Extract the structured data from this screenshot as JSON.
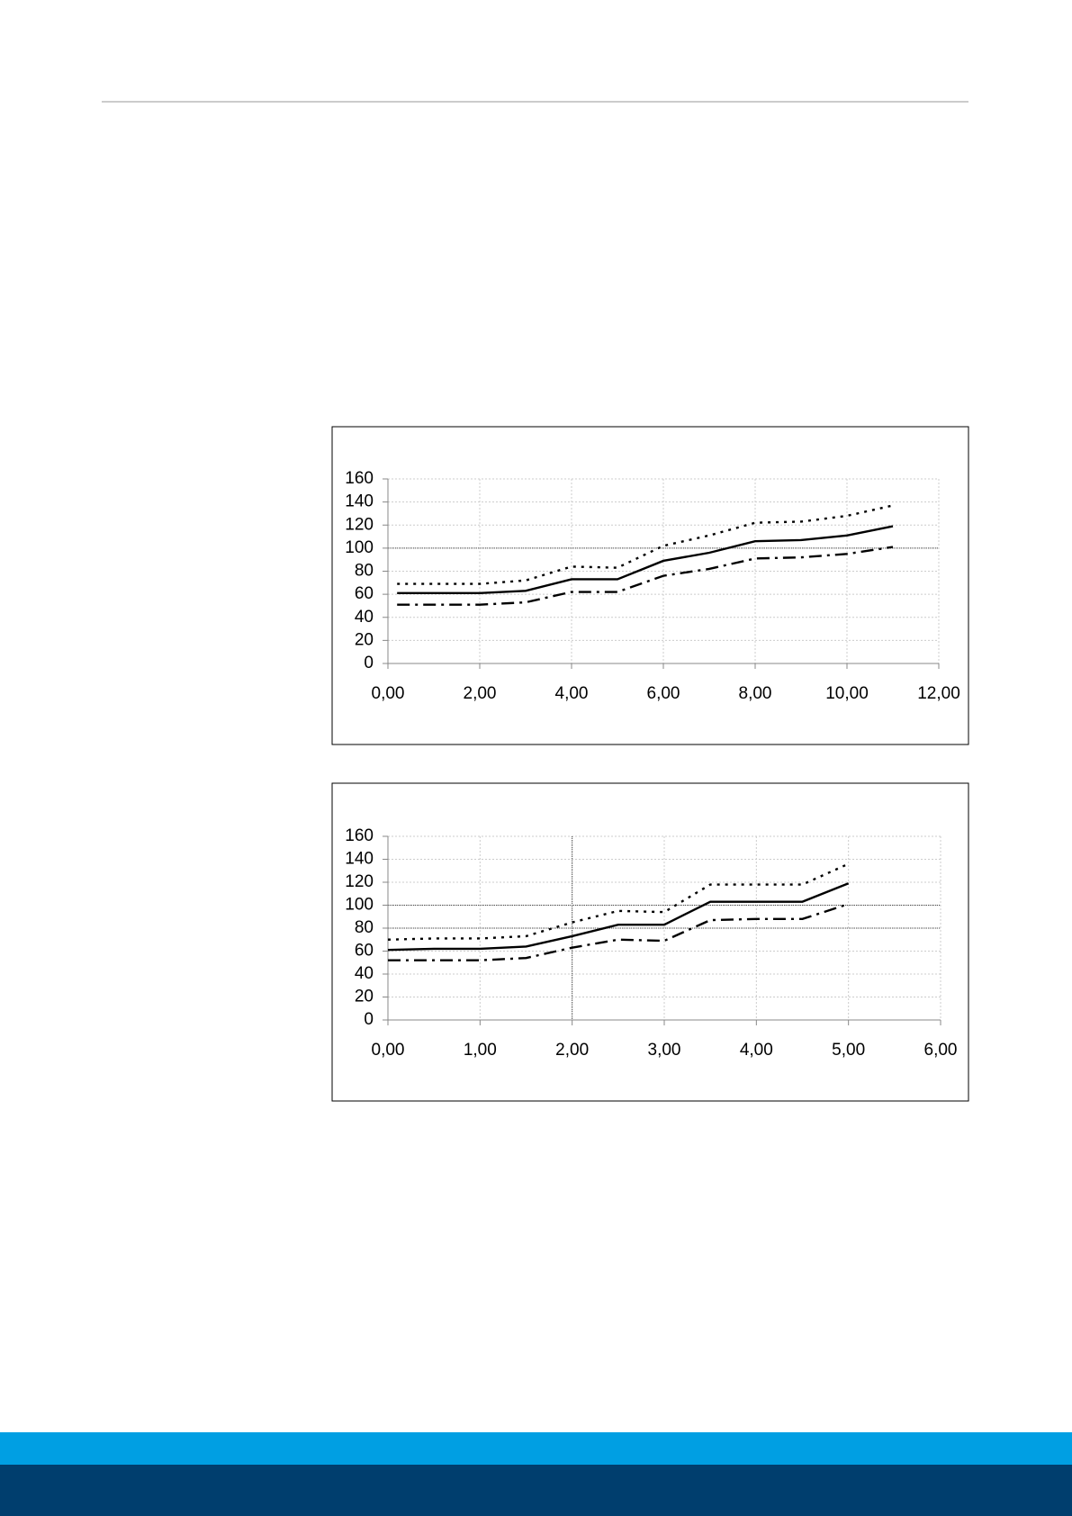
{
  "chart_data": [
    {
      "type": "line",
      "x": [
        0.2,
        1,
        2,
        3,
        4,
        5,
        6,
        7,
        8,
        9,
        10,
        11
      ],
      "series": [
        {
          "color": "#000000",
          "dash": "dotted",
          "values": [
            69,
            69,
            69,
            72,
            84,
            83,
            102,
            111,
            122,
            123,
            128,
            137
          ]
        },
        {
          "color": "#000000",
          "dash": "solid",
          "values": [
            61,
            61,
            61,
            63,
            73,
            73,
            89,
            96,
            106,
            107,
            111,
            119
          ]
        },
        {
          "color": "#000000",
          "dash": "dashdot",
          "values": [
            51,
            51,
            51,
            53,
            62,
            62,
            76,
            82,
            91,
            92,
            95,
            101
          ]
        }
      ],
      "xlim": [
        0,
        12
      ],
      "xticks": [
        {
          "value": 0,
          "label": "0,00"
        },
        {
          "value": 2,
          "label": "2,00"
        },
        {
          "value": 4,
          "label": "4,00"
        },
        {
          "value": 6,
          "label": "6,00"
        },
        {
          "value": 8,
          "label": "8,00"
        },
        {
          "value": 10,
          "label": "10,00"
        },
        {
          "value": 12,
          "label": "12,00"
        }
      ],
      "ylim": [
        0,
        160
      ],
      "yticks": [
        0,
        20,
        40,
        60,
        80,
        100,
        120,
        140,
        160
      ],
      "grid": true,
      "hlines": [
        100
      ],
      "vlines": []
    },
    {
      "type": "line",
      "x": [
        0,
        0.5,
        1,
        1.5,
        2,
        2.5,
        3,
        3.5,
        4,
        4.5,
        5
      ],
      "series": [
        {
          "color": "#000000",
          "dash": "dotted",
          "values": [
            70,
            71,
            71,
            73,
            85,
            95,
            94,
            118,
            118,
            118,
            136
          ]
        },
        {
          "color": "#000000",
          "dash": "solid",
          "values": [
            61,
            62,
            62,
            64,
            73,
            83,
            83,
            103,
            103,
            103,
            119
          ]
        },
        {
          "color": "#000000",
          "dash": "dashdot",
          "values": [
            52,
            52,
            52,
            54,
            63,
            70,
            69,
            87,
            88,
            88,
            101
          ]
        }
      ],
      "xlim": [
        0,
        6
      ],
      "xticks": [
        {
          "value": 0,
          "label": "0,00"
        },
        {
          "value": 1,
          "label": "1,00"
        },
        {
          "value": 2,
          "label": "2,00"
        },
        {
          "value": 3,
          "label": "3,00"
        },
        {
          "value": 4,
          "label": "4,00"
        },
        {
          "value": 5,
          "label": "5,00"
        },
        {
          "value": 6,
          "label": "6,00"
        }
      ],
      "ylim": [
        0,
        160
      ],
      "yticks": [
        0,
        20,
        40,
        60,
        80,
        100,
        120,
        140,
        160
      ],
      "grid": true,
      "hlines": [
        100,
        80
      ],
      "vlines": [
        2
      ]
    }
  ]
}
